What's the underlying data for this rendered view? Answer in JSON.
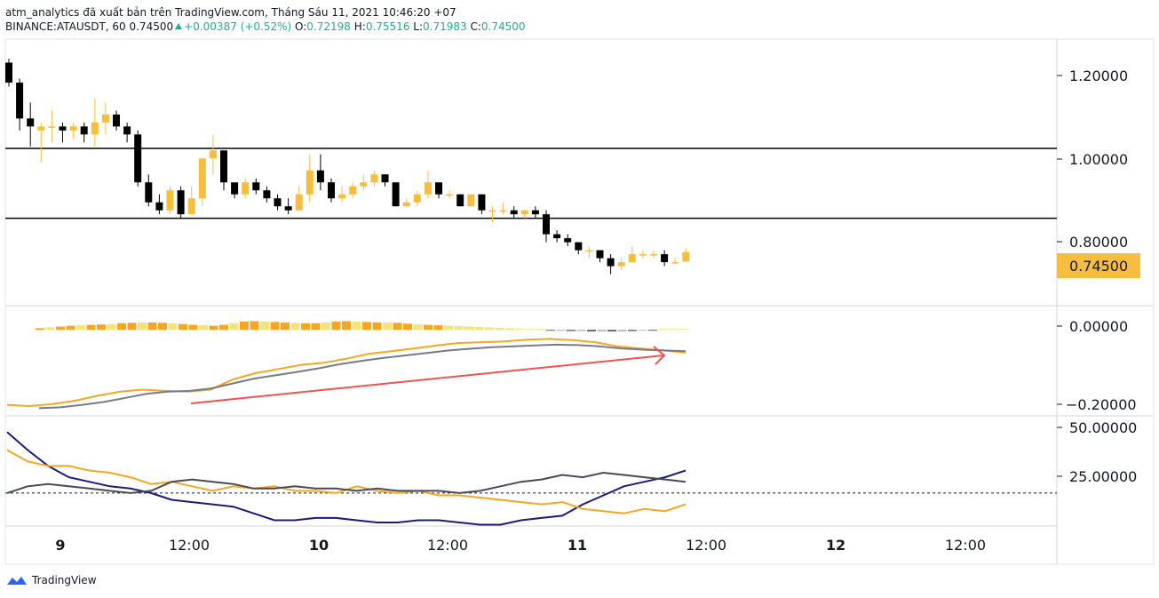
{
  "header": {
    "title_line": "atm_analytics đã xuất bản trên TradingView.com, Tháng Sáu 11, 2021 10:46:20 +07",
    "symbol": "BINANCE:ATAUSDT, 60",
    "last": "0.74500",
    "change": "+0.00387 (+0.52%)",
    "o_label": "O:",
    "o_value": "0.72198",
    "h_label": "H:",
    "h_value": "0.75516",
    "l_label": "L:",
    "l_value": "0.71983",
    "c_label": "C:",
    "c_value": "0.74500"
  },
  "price_axis": {
    "ticks": [
      "1.20000",
      "1.00000",
      "0.80000"
    ],
    "last_price_label": "0.74500",
    "last_price_color": "#f6bd3f"
  },
  "oscillator_axis": {
    "ticks": [
      "0.00000",
      "−0.20000"
    ]
  },
  "dmi_axis": {
    "ticks": [
      "50.00000",
      "25.00000"
    ]
  },
  "time_axis": {
    "labels": [
      "9",
      "12:00",
      "10",
      "12:00",
      "11",
      "12:00",
      "12",
      "12:00"
    ]
  },
  "colors": {
    "up": "#f6bd3f",
    "down": "#000000",
    "arrow": "#ef5350",
    "orange": "#f5a623",
    "gray": "#787b86",
    "navy": "#1a1a7e"
  },
  "chart_data": [
    {
      "type": "candlestick",
      "name": "BINANCE:ATAUSDT",
      "ylim": [
        0.62,
        1.27
      ],
      "horizontal_lines": [
        1.005,
        0.83
      ],
      "candles": [
        [
          1.22,
          1.17,
          1.23,
          1.16
        ],
        [
          1.17,
          1.08,
          1.18,
          1.05
        ],
        [
          1.08,
          1.06,
          1.12,
          1.01
        ],
        [
          1.05,
          1.06,
          1.07,
          0.97
        ],
        [
          1.06,
          1.06,
          1.1,
          1.02
        ],
        [
          1.06,
          1.05,
          1.07,
          1.02
        ],
        [
          1.05,
          1.06,
          1.07,
          1.03
        ],
        [
          1.06,
          1.04,
          1.07,
          1.02
        ],
        [
          1.04,
          1.07,
          1.13,
          1.01
        ],
        [
          1.07,
          1.09,
          1.12,
          1.04
        ],
        [
          1.09,
          1.06,
          1.1,
          1.05
        ],
        [
          1.06,
          1.04,
          1.07,
          1.02
        ],
        [
          1.04,
          0.92,
          1.05,
          0.91
        ],
        [
          0.92,
          0.87,
          0.94,
          0.86
        ],
        [
          0.87,
          0.85,
          0.89,
          0.84
        ],
        [
          0.85,
          0.9,
          0.91,
          0.84
        ],
        [
          0.9,
          0.84,
          0.91,
          0.83
        ],
        [
          0.84,
          0.88,
          0.91,
          0.85
        ],
        [
          0.88,
          0.98,
          0.98,
          0.86
        ],
        [
          0.98,
          1.0,
          1.04,
          0.94
        ],
        [
          1.0,
          0.92,
          1.0,
          0.9
        ],
        [
          0.92,
          0.89,
          0.92,
          0.88
        ],
        [
          0.89,
          0.92,
          0.93,
          0.88
        ],
        [
          0.92,
          0.9,
          0.93,
          0.89
        ],
        [
          0.9,
          0.88,
          0.91,
          0.87
        ],
        [
          0.88,
          0.86,
          0.89,
          0.85
        ],
        [
          0.86,
          0.85,
          0.88,
          0.84
        ],
        [
          0.85,
          0.89,
          0.91,
          0.85
        ],
        [
          0.89,
          0.95,
          0.99,
          0.87
        ],
        [
          0.95,
          0.92,
          0.99,
          0.9
        ],
        [
          0.92,
          0.88,
          0.93,
          0.87
        ],
        [
          0.88,
          0.89,
          0.91,
          0.87
        ],
        [
          0.89,
          0.91,
          0.92,
          0.88
        ],
        [
          0.91,
          0.92,
          0.94,
          0.9
        ],
        [
          0.92,
          0.94,
          0.95,
          0.91
        ],
        [
          0.94,
          0.92,
          0.94,
          0.91
        ],
        [
          0.92,
          0.86,
          0.92,
          0.86
        ],
        [
          0.86,
          0.87,
          0.88,
          0.86
        ],
        [
          0.87,
          0.89,
          0.9,
          0.86
        ],
        [
          0.89,
          0.92,
          0.95,
          0.88
        ],
        [
          0.92,
          0.89,
          0.92,
          0.88
        ],
        [
          0.89,
          0.89,
          0.9,
          0.88
        ],
        [
          0.89,
          0.86,
          0.89,
          0.86
        ],
        [
          0.86,
          0.89,
          0.89,
          0.86
        ],
        [
          0.89,
          0.85,
          0.89,
          0.84
        ],
        [
          0.85,
          0.85,
          0.86,
          0.82
        ],
        [
          0.85,
          0.85,
          0.87,
          0.84
        ],
        [
          0.85,
          0.84,
          0.86,
          0.83
        ],
        [
          0.84,
          0.85,
          0.85,
          0.83
        ],
        [
          0.85,
          0.84,
          0.86,
          0.83
        ],
        [
          0.84,
          0.79,
          0.85,
          0.77
        ],
        [
          0.79,
          0.78,
          0.8,
          0.77
        ],
        [
          0.78,
          0.77,
          0.79,
          0.76
        ],
        [
          0.77,
          0.75,
          0.77,
          0.74
        ],
        [
          0.75,
          0.75,
          0.76,
          0.73
        ],
        [
          0.75,
          0.73,
          0.75,
          0.72
        ],
        [
          0.73,
          0.71,
          0.74,
          0.69
        ],
        [
          0.71,
          0.72,
          0.73,
          0.7
        ],
        [
          0.72,
          0.74,
          0.76,
          0.72
        ],
        [
          0.74,
          0.74,
          0.75,
          0.73
        ],
        [
          0.74,
          0.74,
          0.75,
          0.73
        ],
        [
          0.74,
          0.72,
          0.75,
          0.71
        ],
        [
          0.72,
          0.72,
          0.73,
          0.715
        ],
        [
          0.722,
          0.745,
          0.755,
          0.72
        ]
      ]
    },
    {
      "type": "bar",
      "name": "histogram",
      "ylim": [
        -0.2,
        0.05
      ],
      "values": [
        0.004,
        0.006,
        0.008,
        0.01,
        0.011,
        0.012,
        0.013,
        0.014,
        0.016,
        0.017,
        0.018,
        0.018,
        0.017,
        0.016,
        0.014,
        0.012,
        0.011,
        0.01,
        0.012,
        0.016,
        0.02,
        0.021,
        0.02,
        0.019,
        0.018,
        0.017,
        0.016,
        0.016,
        0.018,
        0.02,
        0.021,
        0.02,
        0.019,
        0.018,
        0.018,
        0.017,
        0.015,
        0.013,
        0.012,
        0.011,
        0.01,
        0.009,
        0.008,
        0.007,
        0.006,
        0.005,
        0.004,
        0.003,
        0.002,
        0.001,
        -0.001,
        -0.002,
        -0.003,
        -0.003,
        -0.004,
        -0.004,
        -0.004,
        -0.004,
        -0.003,
        -0.002,
        -0.001,
        0.0,
        0.001,
        0.002
      ]
    },
    {
      "type": "line",
      "name": "oscillator lines",
      "ylim": [
        -0.2,
        0.05
      ],
      "series": [
        {
          "color": "#f5a623",
          "values": [
            -0.182,
            -0.185,
            -0.18,
            -0.172,
            -0.16,
            -0.15,
            -0.145,
            -0.148,
            -0.15,
            -0.145,
            -0.12,
            -0.105,
            -0.095,
            -0.085,
            -0.08,
            -0.07,
            -0.058,
            -0.052,
            -0.045,
            -0.038,
            -0.032,
            -0.03,
            -0.028,
            -0.024,
            -0.022,
            -0.025,
            -0.03,
            -0.04,
            -0.045,
            -0.05,
            -0.055
          ]
        },
        {
          "color": "#787b86",
          "values": [
            -0.19,
            -0.188,
            -0.182,
            -0.175,
            -0.165,
            -0.155,
            -0.15,
            -0.148,
            -0.142,
            -0.13,
            -0.118,
            -0.11,
            -0.102,
            -0.093,
            -0.083,
            -0.075,
            -0.068,
            -0.062,
            -0.056,
            -0.05,
            -0.046,
            -0.042,
            -0.04,
            -0.038,
            -0.036,
            -0.037,
            -0.04,
            -0.045,
            -0.048,
            -0.05,
            -0.052
          ]
        }
      ]
    },
    {
      "type": "line",
      "name": "dmi",
      "ylim": [
        8,
        52
      ],
      "reference_line": 21,
      "series": [
        {
          "color": "#1a1a7e",
          "values": [
            48,
            40,
            33,
            28,
            26,
            24,
            23,
            21,
            18,
            17,
            16,
            15,
            12,
            9,
            9,
            10,
            10,
            9,
            8,
            8,
            9,
            9,
            8,
            7,
            7,
            9,
            10,
            11,
            16,
            20,
            24,
            26,
            28,
            31
          ]
        },
        {
          "color": "#f5a623",
          "values": [
            40,
            35,
            33,
            33,
            31,
            30,
            28,
            25,
            26,
            24,
            22,
            24,
            23,
            24,
            22,
            22,
            21,
            24,
            22,
            21,
            22,
            20,
            20,
            19,
            18,
            17,
            16,
            17,
            14,
            13,
            12,
            14,
            13,
            16
          ]
        },
        {
          "color": "#4a4a55",
          "values": [
            21,
            24,
            25,
            24,
            23,
            22,
            21,
            22,
            26,
            27,
            26,
            25,
            23,
            23,
            24,
            23,
            23,
            22,
            23,
            22,
            22,
            22,
            21,
            22,
            24,
            26,
            27,
            29,
            28,
            30,
            29,
            28,
            27,
            26
          ]
        }
      ]
    }
  ],
  "brand": {
    "name": "TradingView"
  }
}
